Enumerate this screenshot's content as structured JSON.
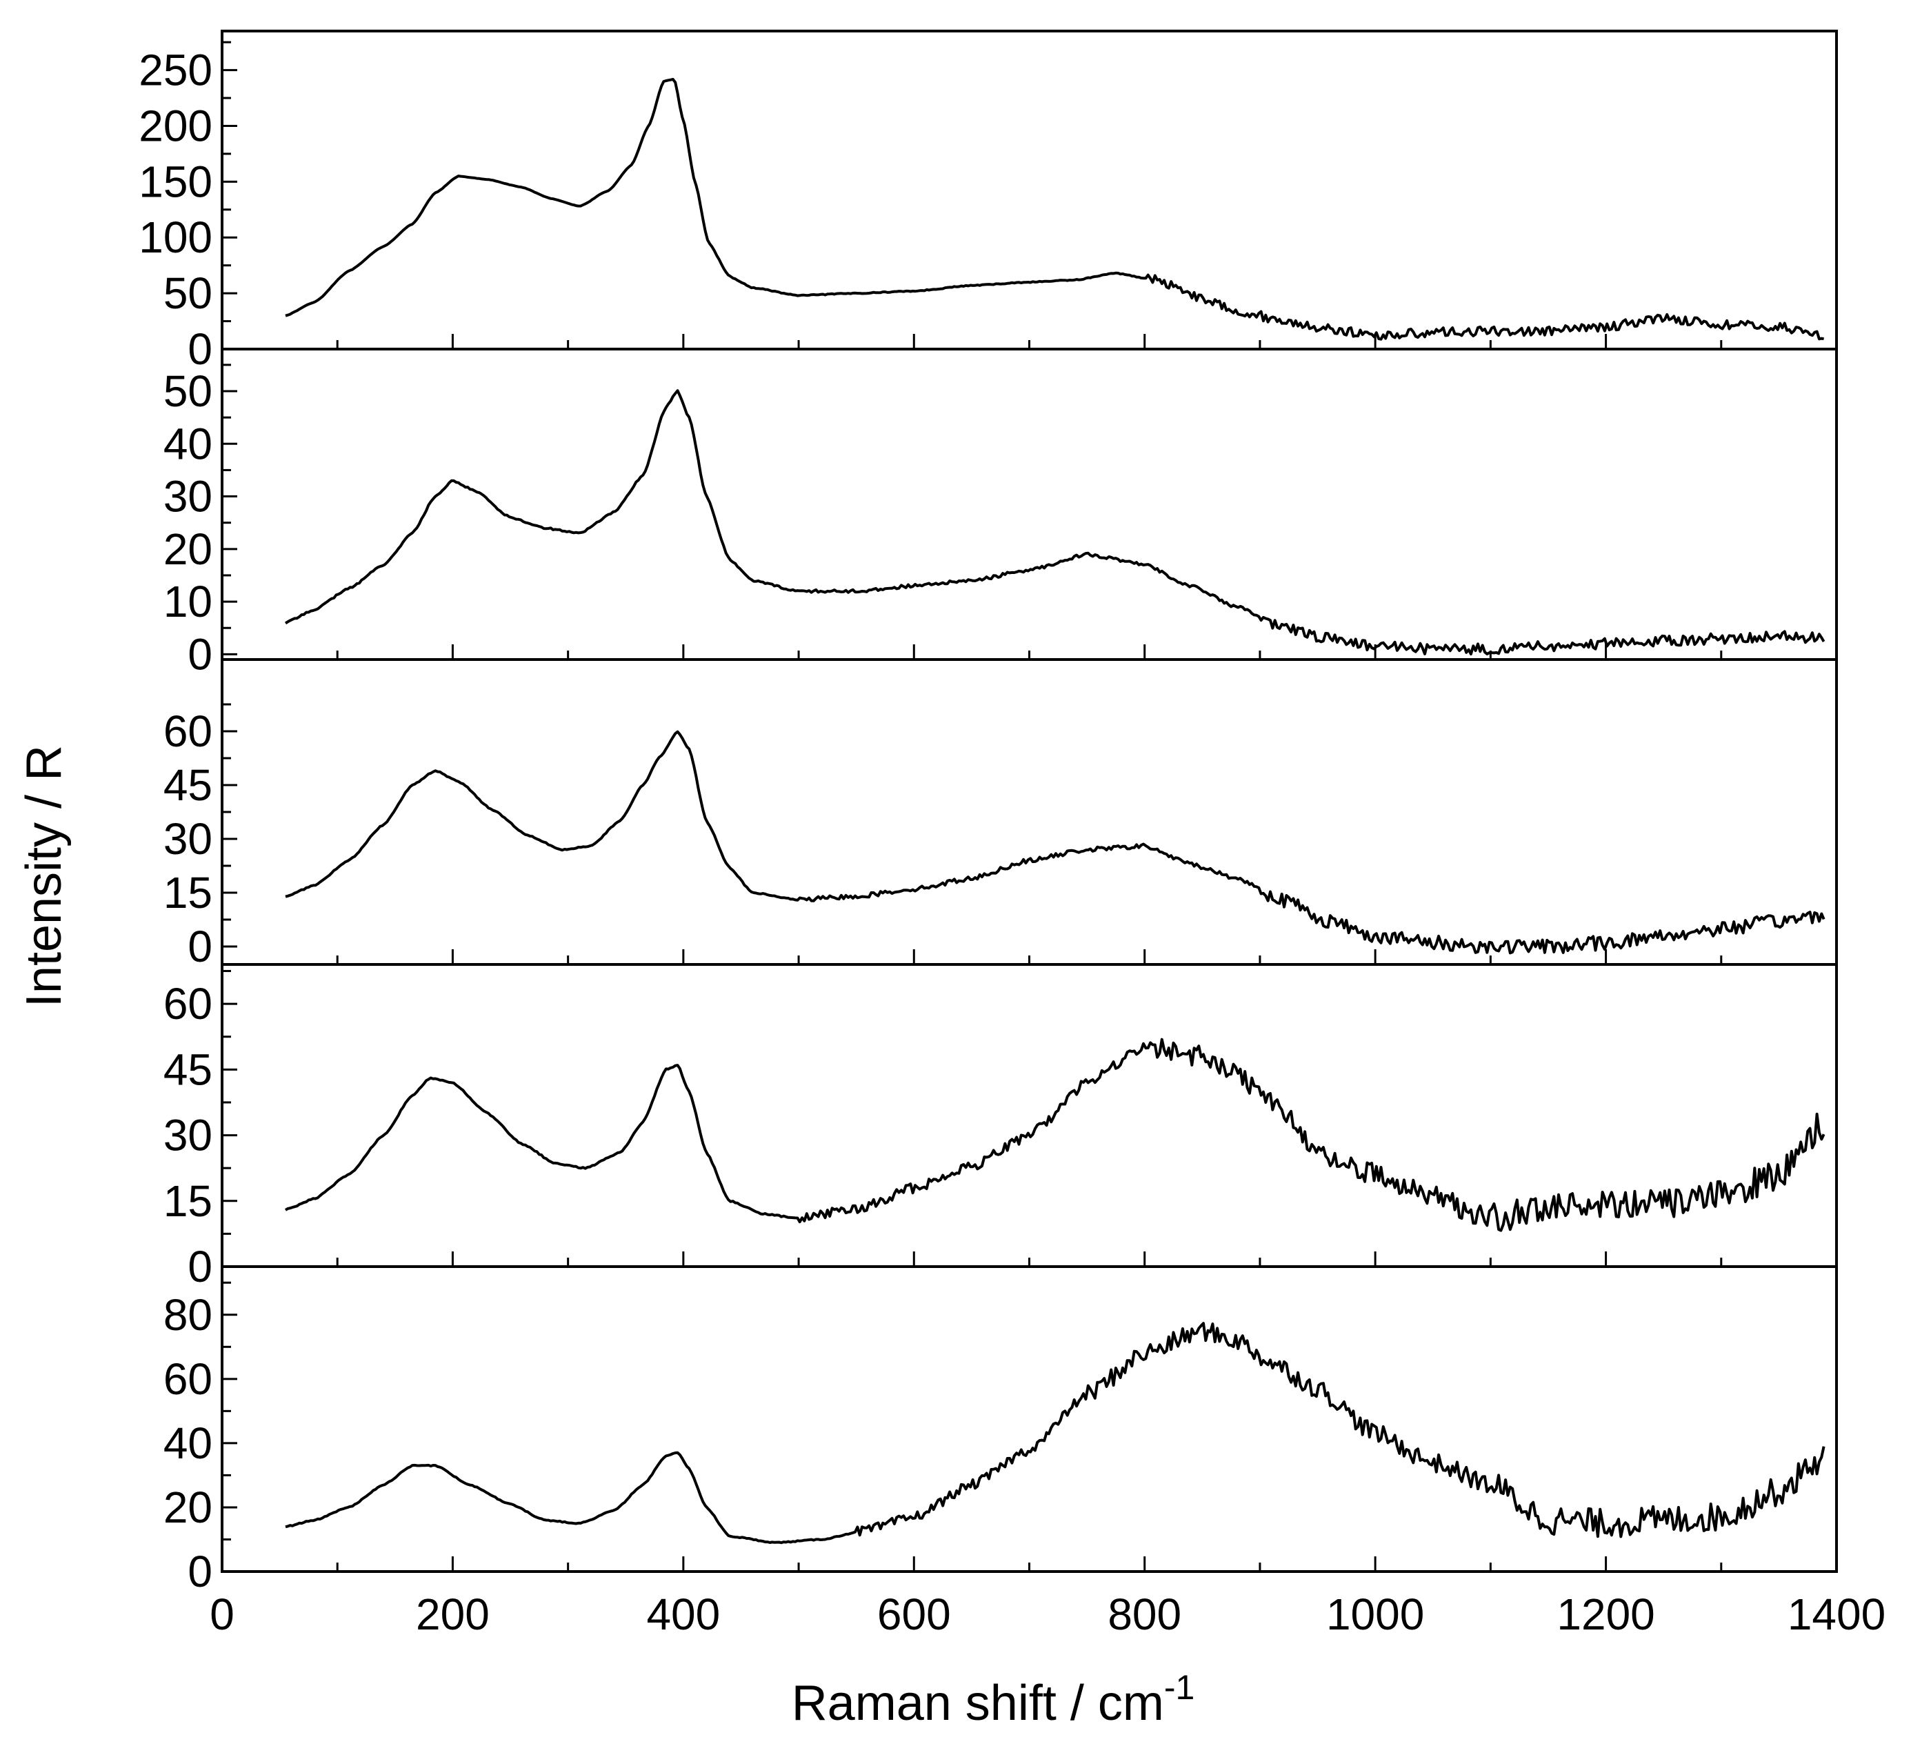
{
  "chart_data": {
    "type": "line",
    "xlabel": "Raman shift / cm",
    "xlabel_superscript": "-1",
    "ylabel": "Intensity / R",
    "xlim": [
      0,
      1400
    ],
    "x_ticks": [
      0,
      200,
      400,
      600,
      800,
      1000,
      1200,
      1400
    ],
    "x_tick_labels": [
      "0",
      "200",
      "400",
      "600",
      "800",
      "1000",
      "1200",
      "1400"
    ],
    "line_color": "#000000",
    "panels": [
      {
        "name": "panel-1",
        "ylim": [
          0,
          285
        ],
        "y_ticks": [
          0,
          50,
          100,
          150,
          200,
          250
        ],
        "y_tick_labels": [
          "0",
          "50",
          "100",
          "150",
          "200",
          "250"
        ],
        "noise_ranges": [
          [
            0.4,
            400,
            800
          ],
          [
            4.0,
            800,
            1400
          ]
        ],
        "points": [
          [
            55,
            30
          ],
          [
            80,
            42
          ],
          [
            110,
            70
          ],
          [
            140,
            92
          ],
          [
            165,
            112
          ],
          [
            185,
            140
          ],
          [
            205,
            155
          ],
          [
            230,
            152
          ],
          [
            260,
            145
          ],
          [
            285,
            135
          ],
          [
            310,
            128
          ],
          [
            335,
            142
          ],
          [
            355,
            165
          ],
          [
            370,
            200
          ],
          [
            383,
            240
          ],
          [
            392,
            242
          ],
          [
            400,
            205
          ],
          [
            410,
            150
          ],
          [
            422,
            95
          ],
          [
            440,
            65
          ],
          [
            460,
            55
          ],
          [
            500,
            48
          ],
          [
            550,
            50
          ],
          [
            600,
            52
          ],
          [
            650,
            57
          ],
          [
            700,
            60
          ],
          [
            740,
            62
          ],
          [
            775,
            68
          ],
          [
            810,
            62
          ],
          [
            830,
            55
          ],
          [
            850,
            45
          ],
          [
            870,
            38
          ],
          [
            890,
            32
          ],
          [
            920,
            25
          ],
          [
            960,
            18
          ],
          [
            1000,
            12
          ],
          [
            1050,
            15
          ],
          [
            1100,
            16
          ],
          [
            1150,
            16
          ],
          [
            1200,
            20
          ],
          [
            1250,
            28
          ],
          [
            1300,
            22
          ],
          [
            1350,
            20
          ],
          [
            1390,
            12
          ]
        ]
      },
      {
        "name": "panel-2",
        "ylim": [
          -1,
          58
        ],
        "y_ticks": [
          0,
          10,
          20,
          30,
          40,
          50
        ],
        "y_tick_labels": [
          "0",
          "10",
          "20",
          "30",
          "40",
          "50"
        ],
        "noise_ranges": [
          [
            0.3,
            500,
            900
          ],
          [
            1.0,
            900,
            1400
          ]
        ],
        "points": [
          [
            55,
            6
          ],
          [
            80,
            8.5
          ],
          [
            110,
            12.5
          ],
          [
            140,
            17
          ],
          [
            165,
            23
          ],
          [
            185,
            30
          ],
          [
            200,
            33
          ],
          [
            220,
            31
          ],
          [
            250,
            26
          ],
          [
            280,
            24
          ],
          [
            310,
            23
          ],
          [
            340,
            27
          ],
          [
            365,
            34
          ],
          [
            385,
            47
          ],
          [
            395,
            50
          ],
          [
            405,
            45
          ],
          [
            420,
            30
          ],
          [
            440,
            18
          ],
          [
            460,
            14
          ],
          [
            500,
            12
          ],
          [
            550,
            12
          ],
          [
            600,
            13
          ],
          [
            650,
            14
          ],
          [
            700,
            16
          ],
          [
            750,
            19
          ],
          [
            800,
            17
          ],
          [
            840,
            13
          ],
          [
            880,
            9
          ],
          [
            920,
            5
          ],
          [
            960,
            3
          ],
          [
            1000,
            1.5
          ],
          [
            1050,
            1
          ],
          [
            1100,
            1
          ],
          [
            1150,
            1.5
          ],
          [
            1200,
            2
          ],
          [
            1250,
            2.5
          ],
          [
            1300,
            3
          ],
          [
            1350,
            3.5
          ],
          [
            1390,
            3
          ]
        ]
      },
      {
        "name": "panel-3",
        "ylim": [
          -5,
          80
        ],
        "y_ticks": [
          0,
          15,
          30,
          45,
          60
        ],
        "y_tick_labels": [
          "0",
          "15",
          "30",
          "45",
          "60"
        ],
        "noise_ranges": [
          [
            0.6,
            500,
            900
          ],
          [
            2.0,
            900,
            1400
          ]
        ],
        "points": [
          [
            55,
            14
          ],
          [
            80,
            17
          ],
          [
            110,
            24
          ],
          [
            140,
            34
          ],
          [
            165,
            45
          ],
          [
            185,
            49
          ],
          [
            205,
            46
          ],
          [
            235,
            38
          ],
          [
            265,
            31
          ],
          [
            295,
            27
          ],
          [
            320,
            28
          ],
          [
            345,
            35
          ],
          [
            365,
            45
          ],
          [
            380,
            53
          ],
          [
            395,
            60
          ],
          [
            405,
            55
          ],
          [
            420,
            35
          ],
          [
            440,
            22
          ],
          [
            460,
            15
          ],
          [
            500,
            13
          ],
          [
            550,
            14
          ],
          [
            600,
            16
          ],
          [
            650,
            19
          ],
          [
            700,
            24
          ],
          [
            750,
            27
          ],
          [
            800,
            28
          ],
          [
            840,
            23
          ],
          [
            880,
            19
          ],
          [
            920,
            13
          ],
          [
            960,
            7
          ],
          [
            1000,
            3
          ],
          [
            1050,
            1
          ],
          [
            1100,
            0
          ],
          [
            1150,
            0
          ],
          [
            1200,
            1
          ],
          [
            1250,
            3
          ],
          [
            1300,
            5
          ],
          [
            1350,
            7
          ],
          [
            1390,
            9
          ]
        ]
      },
      {
        "name": "panel-4",
        "ylim": [
          0,
          69
        ],
        "y_ticks": [
          0,
          15,
          30,
          45,
          60
        ],
        "y_tick_labels": [
          "0",
          "15",
          "30",
          "45",
          "60"
        ],
        "noise_ranges": [
          [
            1.2,
            500,
            800
          ],
          [
            2.5,
            800,
            1100
          ],
          [
            3.5,
            1100,
            1400
          ]
        ],
        "points": [
          [
            55,
            13
          ],
          [
            80,
            15.5
          ],
          [
            110,
            21
          ],
          [
            140,
            30
          ],
          [
            165,
            39
          ],
          [
            180,
            43
          ],
          [
            200,
            42
          ],
          [
            230,
            35
          ],
          [
            260,
            28
          ],
          [
            290,
            23.5
          ],
          [
            315,
            22.5
          ],
          [
            345,
            26
          ],
          [
            365,
            33
          ],
          [
            385,
            45
          ],
          [
            395,
            46
          ],
          [
            405,
            40
          ],
          [
            420,
            26
          ],
          [
            440,
            15
          ],
          [
            470,
            12
          ],
          [
            500,
            11
          ],
          [
            550,
            13
          ],
          [
            600,
            18
          ],
          [
            650,
            23
          ],
          [
            700,
            30
          ],
          [
            750,
            42
          ],
          [
            800,
            50
          ],
          [
            850,
            48
          ],
          [
            880,
            44
          ],
          [
            910,
            38
          ],
          [
            950,
            26
          ],
          [
            1000,
            21
          ],
          [
            1050,
            16
          ],
          [
            1100,
            11
          ],
          [
            1150,
            13
          ],
          [
            1200,
            15
          ],
          [
            1250,
            14
          ],
          [
            1300,
            16
          ],
          [
            1350,
            21
          ],
          [
            1390,
            33
          ]
        ]
      },
      {
        "name": "panel-5",
        "ylim": [
          0,
          95
        ],
        "y_ticks": [
          0,
          20,
          40,
          60,
          80
        ],
        "y_tick_labels": [
          "0",
          "20",
          "40",
          "60",
          "80"
        ],
        "noise_ranges": [
          [
            1.5,
            550,
            750
          ],
          [
            3.0,
            750,
            1100
          ],
          [
            4.5,
            1100,
            1400
          ]
        ],
        "points": [
          [
            55,
            14
          ],
          [
            80,
            16
          ],
          [
            110,
            20
          ],
          [
            140,
            27
          ],
          [
            165,
            33
          ],
          [
            185,
            33
          ],
          [
            215,
            27
          ],
          [
            250,
            21
          ],
          [
            280,
            16
          ],
          [
            310,
            15
          ],
          [
            340,
            19
          ],
          [
            365,
            27
          ],
          [
            385,
            36
          ],
          [
            395,
            37
          ],
          [
            405,
            32
          ],
          [
            420,
            20
          ],
          [
            440,
            11
          ],
          [
            480,
            9
          ],
          [
            520,
            10
          ],
          [
            560,
            13
          ],
          [
            600,
            17
          ],
          [
            650,
            27
          ],
          [
            700,
            38
          ],
          [
            750,
            55
          ],
          [
            800,
            68
          ],
          [
            850,
            75
          ],
          [
            880,
            72
          ],
          [
            910,
            65
          ],
          [
            950,
            57
          ],
          [
            1000,
            43
          ],
          [
            1050,
            34
          ],
          [
            1100,
            27
          ],
          [
            1150,
            16
          ],
          [
            1200,
            15
          ],
          [
            1250,
            16
          ],
          [
            1300,
            17
          ],
          [
            1350,
            25
          ],
          [
            1390,
            36
          ]
        ]
      }
    ]
  }
}
